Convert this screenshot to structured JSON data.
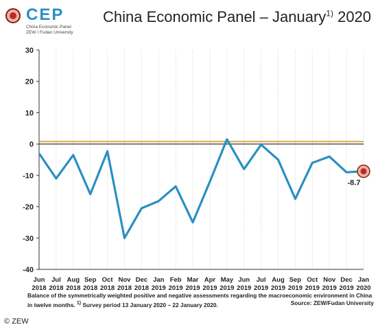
{
  "logo": {
    "name": "CEP",
    "line1": "China Economic Panel",
    "line2": "ZEW I Fudan University"
  },
  "title": {
    "main": "China Economic Panel – January",
    "footnote_mark": "1)",
    "year": " 2020"
  },
  "caption": {
    "text1": "Balance of the symmetrically weighted positive and negative assessments regarding the macroeconomic environment in China in twelve months. ",
    "footnote_mark": "1)",
    "text2": " Survey period 13 January 2020 – 22 January 2020.",
    "source": "Source: ZEW/Fudan University"
  },
  "copyright": "© ZEW",
  "colors": {
    "line": "#2a8fc1",
    "reference_line": "#d59b2c",
    "zero_line": "#555555",
    "grid": "#cccccc",
    "marker": "#c1272d"
  },
  "chart_data": {
    "type": "line",
    "categories": [
      "Jun 2018",
      "Jul 2018",
      "Aug 2018",
      "Sep 2018",
      "Oct 2018",
      "Nov 2018",
      "Dec 2018",
      "Jan 2019",
      "Feb 2019",
      "Mar 2019",
      "Apr 2019",
      "May 2019",
      "Jun 2019",
      "Jul 2019",
      "Aug 2019",
      "Sep 2019",
      "Oct 2019",
      "Nov 2019",
      "Dec 2019",
      "Jan 2020"
    ],
    "tick_month": [
      "Jun",
      "Jul",
      "Aug",
      "Sep",
      "Oct",
      "Nov",
      "Dec",
      "Jan",
      "Feb",
      "Mar",
      "Apr",
      "May",
      "Jun",
      "Jul",
      "Aug",
      "Sep",
      "Oct",
      "Nov",
      "Dec",
      "Jan"
    ],
    "tick_year": [
      "2018",
      "2018",
      "2018",
      "2018",
      "2018",
      "2018",
      "2018",
      "2019",
      "2019",
      "2019",
      "2019",
      "2019",
      "2019",
      "2019",
      "2019",
      "2019",
      "2019",
      "2019",
      "2019",
      "2020"
    ],
    "values": [
      -3,
      -11,
      -3.5,
      -16,
      -2.3,
      -30,
      -20.5,
      -18.2,
      -13.5,
      -25,
      -12,
      1.5,
      -8,
      -0.2,
      -5,
      -17.5,
      -6,
      -4,
      -9,
      -8.7
    ],
    "reference_value": 0.8,
    "ylim": [
      -40,
      30
    ],
    "yticks": [
      30,
      20,
      10,
      0,
      -10,
      -20,
      -30,
      -40
    ],
    "grid": "vertical",
    "last_value_label": "-8.7"
  }
}
